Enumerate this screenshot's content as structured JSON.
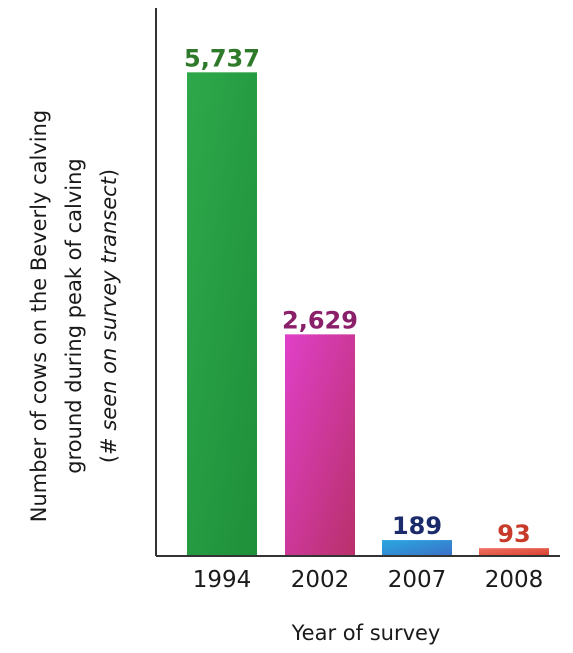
{
  "chart_data": {
    "type": "bar",
    "title": "",
    "categories": [
      "1994",
      "2002",
      "2007",
      "2008"
    ],
    "values": [
      5737,
      2629,
      189,
      93
    ],
    "value_labels": [
      "5,737",
      "2,629",
      "189",
      "93"
    ],
    "xlabel": "Year of survey",
    "ylabel_lines": [
      "Number of cows on the Beverly calving",
      "ground during peak of calving"
    ],
    "ylabel_note": {
      "prefix": "(# ",
      "italic": "seen on survey transect",
      "suffix": ")"
    },
    "ylim": [
      0,
      6500
    ],
    "grid": false,
    "legend": "none",
    "bar_gradients": [
      [
        "#2ea84a",
        "#1e8f3a"
      ],
      [
        "#e040c8",
        "#b8306a"
      ],
      [
        "#2aa8e0",
        "#3a70c8"
      ],
      [
        "#f07060",
        "#d84030"
      ]
    ],
    "label_colors": [
      "#2f7a2a",
      "#8a1f6a",
      "#1a2a6a",
      "#c83a2a"
    ]
  }
}
